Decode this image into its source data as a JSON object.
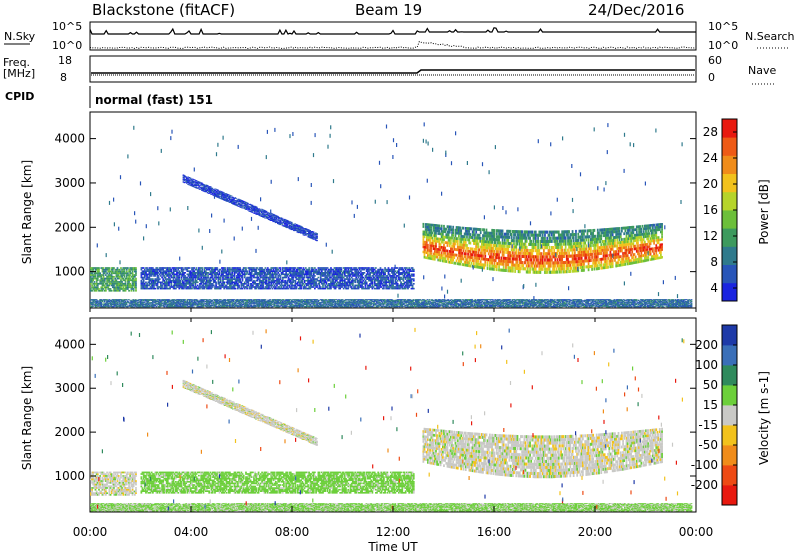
{
  "header": {
    "station": "Blackstone (fitACF)",
    "beam": "Beam 19",
    "date": "24/Dec/2016"
  },
  "top_panels": {
    "nsky": {
      "label": "N.Sky",
      "ytick_top": "10^5",
      "ytick_bottom": "10^0",
      "right_label": "N.Search",
      "right_tick_top": "10^5",
      "right_tick_bottom": "10^0"
    },
    "freq": {
      "label_line1": "Freq.",
      "label_line2": "[MHz]",
      "ytick_top": "18",
      "ytick_bottom": "8",
      "right_label": "Nave",
      "right_tick_top": "60",
      "right_tick_bottom": "0"
    },
    "cpid": {
      "label": "CPID",
      "value": "normal (fast) 151"
    }
  },
  "chart_data": [
    {
      "type": "heatmap",
      "panel": "power",
      "ylabel": "Slant Range [km]",
      "ylim": [
        180,
        4600
      ],
      "yticks": [
        "1000",
        "2000",
        "3000",
        "4000"
      ],
      "xlim": [
        "00:00",
        "24:00"
      ],
      "colorbar": {
        "label": "Power [dB]",
        "ticks": [
          "4",
          "8",
          "12",
          "16",
          "20",
          "24",
          "28"
        ],
        "colors": [
          "#1a24e0",
          "#2855b8",
          "#2f7a8c",
          "#3d9a5e",
          "#6cbf3a",
          "#b6d42a",
          "#f2c21c",
          "#f08c1a",
          "#ee5a16",
          "#e8190f"
        ]
      },
      "regions": [
        {
          "feature": "near-range band",
          "start": "00:00",
          "end": "23:50",
          "range_km": [
            200,
            380
          ],
          "power_db": 8
        },
        {
          "feature": "early patch",
          "start": "00:00",
          "end": "01:50",
          "range_km": [
            550,
            1100
          ],
          "power_db": 12
        },
        {
          "feature": "band 1",
          "start": "02:00",
          "end": "12:50",
          "range_km": [
            600,
            1100
          ],
          "power_db": 6
        },
        {
          "feature": "drifting echo",
          "start": "03:40",
          "end": "09:00",
          "range_km": [
            1700,
            3100
          ],
          "power_db": 5
        },
        {
          "feature": "main afternoon echo",
          "start": "13:10",
          "end": "22:40",
          "range_km": [
            950,
            2100
          ],
          "power_db": 24
        }
      ]
    },
    {
      "type": "heatmap",
      "panel": "velocity",
      "ylabel": "Slant Range [km]",
      "xlabel": "Time UT",
      "ylim": [
        180,
        4600
      ],
      "yticks": [
        "1000",
        "2000",
        "3000",
        "4000"
      ],
      "xticks": [
        "00:00",
        "04:00",
        "08:00",
        "12:00",
        "16:00",
        "20:00",
        "00:00"
      ],
      "colorbar": {
        "label": "Velocity [m s-1]",
        "ticks": [
          "200",
          "100",
          "50",
          "15",
          "-15",
          "-50",
          "-100",
          "-200"
        ],
        "colors": [
          "#1e3aa8",
          "#3a6fb8",
          "#2f8a5c",
          "#6ccf3a",
          "#c9c9c6",
          "#f2c21c",
          "#f08c1a",
          "#ee4a14",
          "#e8190f"
        ]
      },
      "regions": [
        {
          "feature": "near-range ground scatter",
          "start": "00:00",
          "end": "23:50",
          "range_km": [
            200,
            380
          ],
          "velocity": 15
        },
        {
          "feature": "early patch",
          "start": "00:00",
          "end": "01:50",
          "range_km": [
            550,
            1100
          ],
          "velocity": 0
        },
        {
          "feature": "band 1",
          "start": "02:00",
          "end": "12:50",
          "range_km": [
            600,
            1100
          ],
          "velocity": 30
        },
        {
          "feature": "drifting echo",
          "start": "03:40",
          "end": "09:00",
          "range_km": [
            1700,
            3100
          ],
          "velocity": 0
        },
        {
          "feature": "main afternoon echo",
          "start": "13:10",
          "end": "22:40",
          "range_km": [
            950,
            2100
          ],
          "velocity": 0
        }
      ]
    }
  ]
}
